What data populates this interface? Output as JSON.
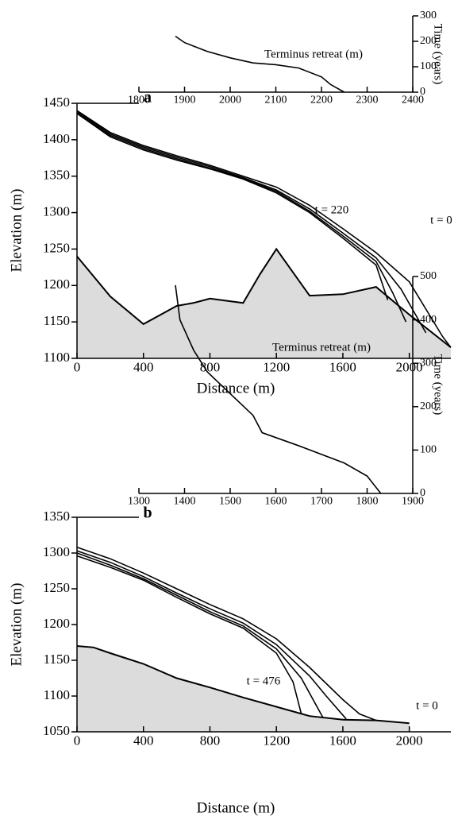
{
  "chart_data": [
    {
      "type": "line",
      "label": "a",
      "xlabel": "Distance (m)",
      "ylabel": "Elevation (m)",
      "xlim": [
        0,
        2250
      ],
      "xticks": [
        0,
        400,
        800,
        1200,
        1600,
        2000
      ],
      "ylim": [
        1100,
        1450
      ],
      "yticks": [
        1100,
        1150,
        1200,
        1250,
        1300,
        1350,
        1400,
        1450
      ],
      "bed": {
        "color": "#dcdcdc",
        "x": [
          0,
          200,
          400,
          600,
          700,
          800,
          1000,
          1100,
          1200,
          1400,
          1600,
          1800,
          2000,
          2250
        ],
        "values": [
          1240,
          1185,
          1147,
          1172,
          1176,
          1182,
          1176,
          1215,
          1250,
          1186,
          1188,
          1198,
          1160,
          1115
        ]
      },
      "series": [
        {
          "color": "#000000",
          "x": [
            0,
            200,
            400,
            600,
            800,
            1000,
            1200,
            1400,
            1600,
            1800,
            2000,
            2200,
            2250
          ],
          "values": [
            1440,
            1410,
            1392,
            1378,
            1365,
            1350,
            1335,
            1310,
            1278,
            1245,
            1205,
            1130,
            1115
          ]
        },
        {
          "color": "#000000",
          "x": [
            0,
            200,
            400,
            600,
            800,
            1000,
            1200,
            1400,
            1600,
            1800,
            1950,
            2100
          ],
          "values": [
            1439,
            1408,
            1390,
            1376,
            1363,
            1348,
            1331,
            1305,
            1272,
            1238,
            1195,
            1135
          ]
        },
        {
          "color": "#000000",
          "x": [
            0,
            200,
            400,
            600,
            800,
            1000,
            1200,
            1400,
            1600,
            1800,
            1900,
            1980
          ],
          "values": [
            1437,
            1406,
            1388,
            1374,
            1361,
            1347,
            1329,
            1302,
            1268,
            1233,
            1190,
            1150
          ]
        },
        {
          "color": "#000000",
          "x": [
            0,
            200,
            400,
            600,
            800,
            1000,
            1200,
            1400,
            1600,
            1800,
            1870
          ],
          "values": [
            1436,
            1404,
            1386,
            1372,
            1360,
            1346,
            1327,
            1300,
            1265,
            1228,
            1180
          ]
        }
      ],
      "annotations": [
        "t = 220",
        "t = 0"
      ]
    },
    {
      "type": "line",
      "title": "Terminus retreat (m)",
      "ylabel": "Time (years)",
      "yaxis": "right",
      "xlim": [
        1800,
        2400
      ],
      "xticks": [
        1800,
        1900,
        2000,
        2100,
        2200,
        2300,
        2400
      ],
      "ylim": [
        0,
        300
      ],
      "yticks": [
        0,
        100,
        200,
        300
      ],
      "series": [
        {
          "color": "#000000",
          "x": [
            1880,
            1900,
            1950,
            2000,
            2050,
            2100,
            2150,
            2200,
            2220,
            2250
          ],
          "values": [
            220,
            195,
            160,
            135,
            115,
            108,
            95,
            60,
            30,
            0
          ]
        }
      ]
    },
    {
      "type": "line",
      "label": "b",
      "xlabel": "Distance (m)",
      "ylabel": "Elevation (m)",
      "xlim": [
        0,
        2250
      ],
      "xticks": [
        0,
        400,
        800,
        1200,
        1600,
        2000
      ],
      "ylim": [
        1050,
        1350
      ],
      "yticks": [
        1050,
        1100,
        1150,
        1200,
        1250,
        1300,
        1350
      ],
      "bed": {
        "color": "#dcdcdc",
        "x": [
          0,
          100,
          200,
          400,
          600,
          800,
          1000,
          1200,
          1400,
          1600,
          1800,
          2000
        ],
        "values": [
          1170,
          1168,
          1160,
          1145,
          1125,
          1112,
          1098,
          1085,
          1072,
          1067,
          1066,
          1062
        ]
      },
      "series": [
        {
          "color": "#000000",
          "x": [
            0,
            200,
            400,
            600,
            800,
            1000,
            1200,
            1400,
            1600,
            1700,
            1800
          ],
          "values": [
            1308,
            1292,
            1272,
            1250,
            1228,
            1208,
            1180,
            1140,
            1095,
            1075,
            1066
          ]
        },
        {
          "color": "#000000",
          "x": [
            0,
            200,
            400,
            600,
            800,
            1000,
            1200,
            1400,
            1500,
            1620
          ],
          "values": [
            1303,
            1287,
            1267,
            1244,
            1222,
            1202,
            1172,
            1128,
            1100,
            1068
          ]
        },
        {
          "color": "#000000",
          "x": [
            0,
            200,
            400,
            600,
            800,
            1000,
            1200,
            1350,
            1480
          ],
          "values": [
            1300,
            1283,
            1264,
            1241,
            1218,
            1198,
            1166,
            1125,
            1070
          ]
        },
        {
          "color": "#000000",
          "x": [
            0,
            200,
            400,
            600,
            800,
            1000,
            1200,
            1300,
            1350
          ],
          "values": [
            1296,
            1280,
            1262,
            1238,
            1215,
            1195,
            1160,
            1120,
            1075
          ]
        }
      ],
      "annotations": [
        "t = 476",
        "t = 0"
      ]
    },
    {
      "type": "line",
      "title": "Terminus retreat (m)",
      "ylabel": "Time (years)",
      "yaxis": "right",
      "xlim": [
        1300,
        1900
      ],
      "xticks": [
        1300,
        1400,
        1500,
        1600,
        1700,
        1800,
        1900
      ],
      "ylim": [
        0,
        500
      ],
      "yticks": [
        0,
        100,
        200,
        300,
        400,
        500
      ],
      "series": [
        {
          "color": "#000000",
          "x": [
            1380,
            1390,
            1420,
            1450,
            1500,
            1550,
            1570,
            1650,
            1750,
            1800,
            1830
          ],
          "values": [
            480,
            400,
            330,
            280,
            230,
            180,
            140,
            110,
            70,
            40,
            0
          ]
        }
      ]
    }
  ]
}
